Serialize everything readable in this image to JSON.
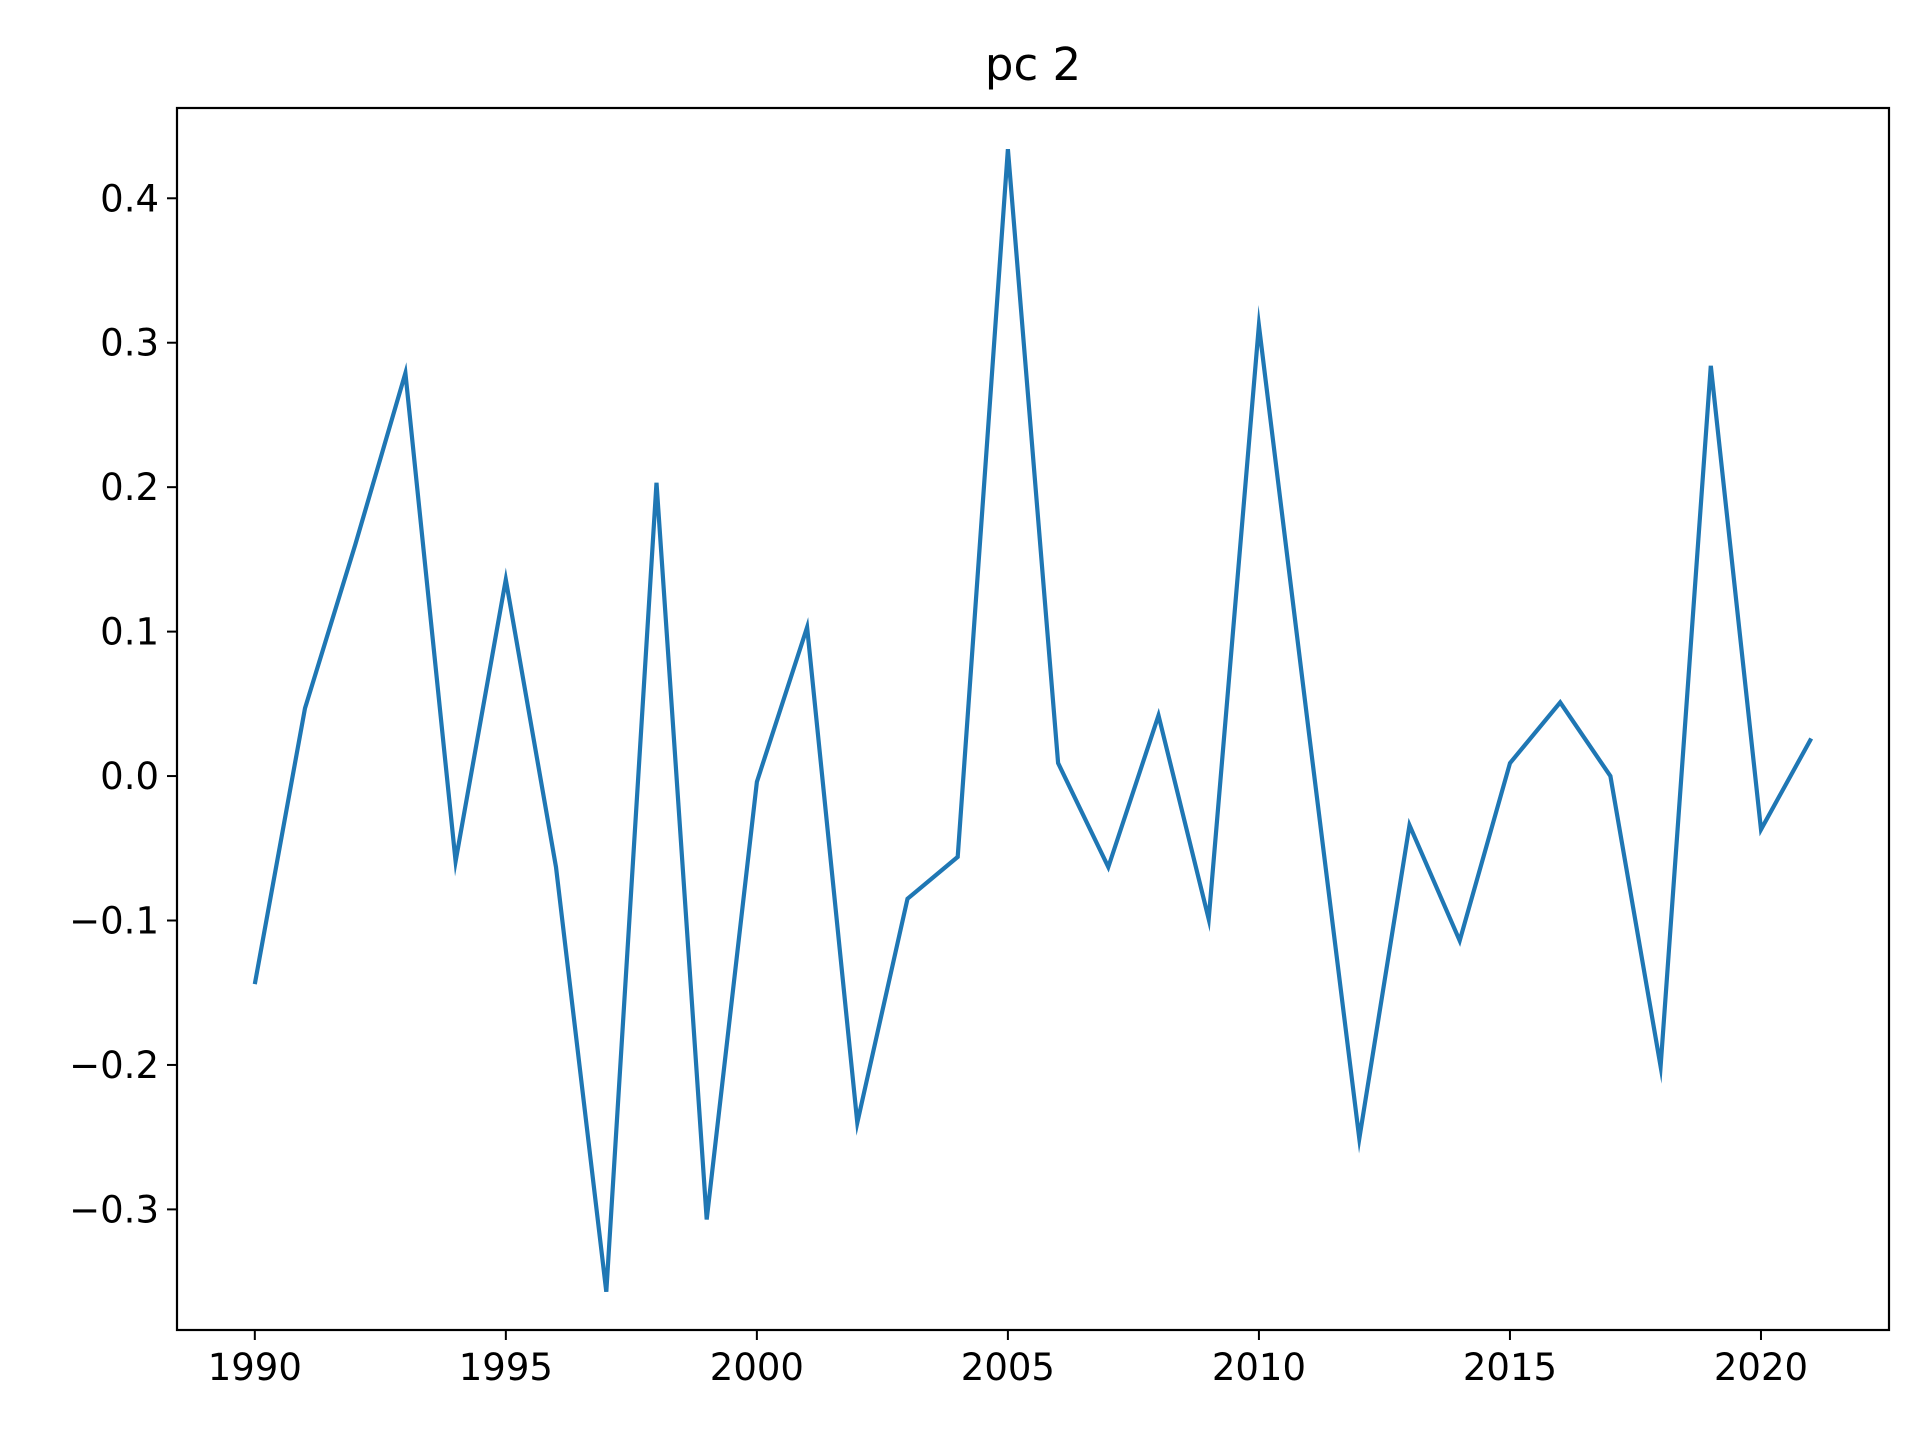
{
  "chart_data": {
    "type": "line",
    "title": "pc 2",
    "xlabel": "",
    "ylabel": "",
    "xlim": [
      1988.45,
      2022.55
    ],
    "ylim": [
      -0.3835,
      0.4625
    ],
    "xticks": [
      1990,
      1995,
      2000,
      2005,
      2010,
      2015,
      2020
    ],
    "xtick_labels": [
      "1990",
      "1995",
      "2000",
      "2005",
      "2010",
      "2015",
      "2020"
    ],
    "yticks": [
      -0.3,
      -0.2,
      -0.1,
      0.0,
      0.1,
      0.2,
      0.3,
      0.4
    ],
    "ytick_labels": [
      "−0.3",
      "−0.2",
      "−0.1",
      "0.0",
      "0.1",
      "0.2",
      "0.3",
      "0.4"
    ],
    "grid": false,
    "legend": "none",
    "series": [
      {
        "color": "#1f77b4",
        "x": [
          1990,
          1991,
          1992,
          1993,
          1994,
          1995,
          1996,
          1997,
          1998,
          1999,
          2000,
          2001,
          2002,
          2003,
          2004,
          2005,
          2006,
          2007,
          2008,
          2009,
          2010,
          2011,
          2012,
          2013,
          2014,
          2015,
          2016,
          2017,
          2018,
          2019,
          2020,
          2021
        ],
        "y": [
          -0.144,
          0.047,
          0.16,
          0.279,
          -0.059,
          0.136,
          -0.063,
          -0.357,
          0.203,
          -0.307,
          -0.004,
          0.103,
          -0.24,
          -0.085,
          -0.056,
          0.434,
          0.009,
          -0.063,
          0.042,
          -0.099,
          0.312,
          0.029,
          -0.251,
          -0.034,
          -0.114,
          0.009,
          0.051,
          0.0,
          -0.201,
          0.284,
          -0.037,
          0.026
        ]
      }
    ]
  }
}
